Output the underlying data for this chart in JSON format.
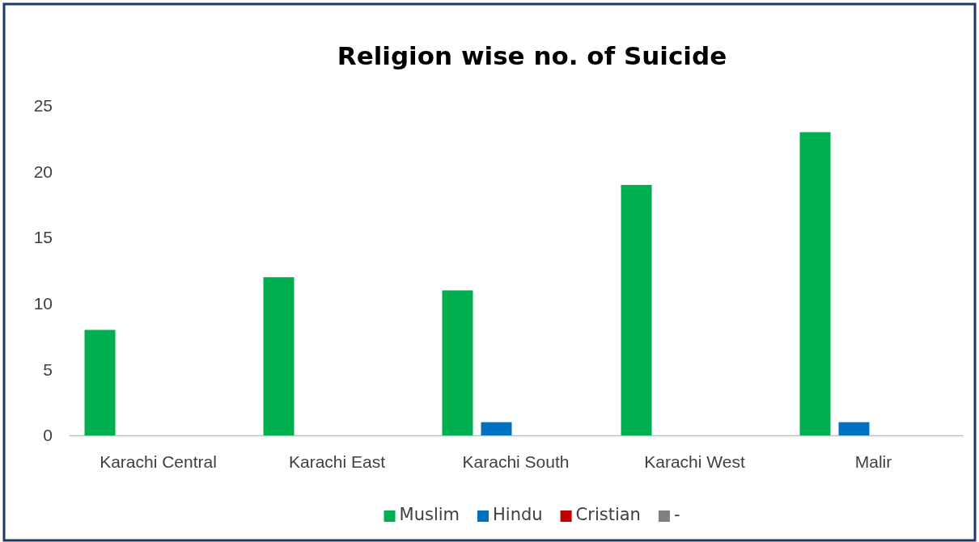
{
  "chart_data": {
    "type": "bar",
    "title": "Religion wise no. of Suicide",
    "categories": [
      "Karachi Central",
      "Karachi East",
      "Karachi South",
      "Karachi West",
      "Malir"
    ],
    "series": [
      {
        "name": "Muslim",
        "color": "#00b050",
        "values": [
          8,
          12,
          11,
          19,
          23
        ]
      },
      {
        "name": "Hindu",
        "color": "#0070c0",
        "values": [
          0,
          0,
          1,
          0,
          1
        ]
      },
      {
        "name": "Cristian",
        "color": "#c00000",
        "values": [
          0,
          0,
          0,
          0,
          0
        ]
      },
      {
        "name": "-",
        "color": "#808080",
        "values": [
          0,
          0,
          0,
          0,
          0
        ]
      }
    ],
    "ylim": [
      0,
      25
    ],
    "yticks": [
      0,
      5,
      10,
      15,
      20,
      25
    ],
    "grid": false,
    "legend": "bottom"
  }
}
